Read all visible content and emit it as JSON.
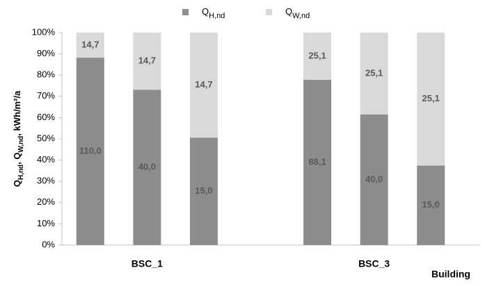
{
  "chart_data": {
    "type": "bar",
    "stacked": "percent",
    "categories": [
      null,
      null,
      null,
      null,
      null,
      null
    ],
    "groups": [
      {
        "label": "BSC_1",
        "size": 3
      },
      {
        "label": "BSC_3",
        "size": 3
      }
    ],
    "series": [
      {
        "name": "Q",
        "name_sub": "H,nd",
        "color": "#8c8c8c",
        "values": [
          110.0,
          40.0,
          15.0,
          88.1,
          40.0,
          15.0
        ],
        "value_labels": [
          "110,0",
          "40,0",
          "15,0",
          "88,1",
          "40,0",
          "15,0"
        ]
      },
      {
        "name": "Q",
        "name_sub": "W,nd",
        "color": "#d9d9d9",
        "values": [
          14.7,
          14.7,
          14.7,
          25.1,
          25.1,
          25.1
        ],
        "value_labels": [
          "14,7",
          "14,7",
          "14,7",
          "25,1",
          "25,1",
          "25,1"
        ]
      }
    ],
    "ylabel": [
      "Q",
      "H,nd",
      ", Q",
      "W,nd",
      ",  kWh/m²/a"
    ],
    "xlabel": "Building",
    "ylim": [
      0,
      100
    ],
    "yticks": [
      {
        "value": 0,
        "label": "0%"
      },
      {
        "value": 10,
        "label": "10%"
      },
      {
        "value": 20,
        "label": "20%"
      },
      {
        "value": 30,
        "label": "30%"
      },
      {
        "value": 40,
        "label": "40%"
      },
      {
        "value": 50,
        "label": "50%"
      },
      {
        "value": 60,
        "label": "60%"
      },
      {
        "value": 70,
        "label": "70%"
      },
      {
        "value": 80,
        "label": "80%"
      },
      {
        "value": 90,
        "label": "90%"
      },
      {
        "value": 100,
        "label": "100%"
      }
    ],
    "legend": "top"
  }
}
